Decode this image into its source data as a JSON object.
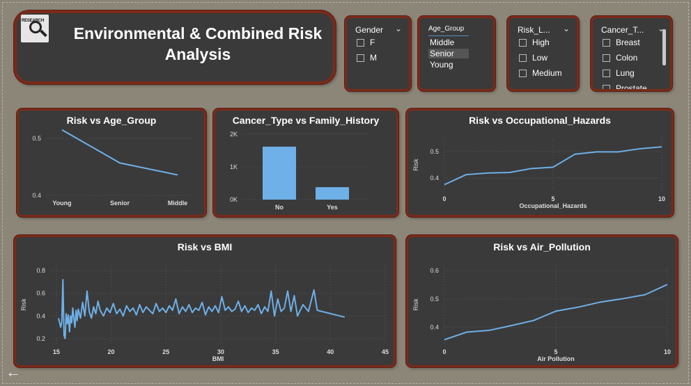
{
  "title": "Environmental & Combined Risk Analysis",
  "logo_text": "RESEARCH",
  "slicers": {
    "gender": {
      "label": "Gender",
      "options": [
        "F",
        "M"
      ]
    },
    "age_group": {
      "label": "Age_Group",
      "options": [
        "Middle",
        "Senior",
        "Young"
      ],
      "selected": "Senior"
    },
    "risk_level": {
      "label": "Risk_L...",
      "options": [
        "High",
        "Low",
        "Medium"
      ]
    },
    "cancer_type": {
      "label": "Cancer_T...",
      "options": [
        "Breast",
        "Colon",
        "Lung",
        "Prostate"
      ]
    }
  },
  "charts": {
    "risk_age": {
      "title": "Risk vs Age_Group",
      "chart_data": {
        "type": "line",
        "categories": [
          "Young",
          "Senior",
          "Middle"
        ],
        "values": [
          0.515,
          0.457,
          0.436
        ],
        "title": "Risk vs Age_Group",
        "ylim": [
          0.4,
          0.5
        ],
        "yticks": [
          "0.4",
          "0.5"
        ],
        "color": "#6fb0e8"
      }
    },
    "cancer_family": {
      "title": "Cancer_Type vs Family_History",
      "chart_data": {
        "type": "bar",
        "categories": [
          "No",
          "Yes"
        ],
        "values": [
          1620,
          380
        ],
        "title": "Cancer_Type vs Family_History",
        "ylim": [
          0,
          2000
        ],
        "yticks": [
          "0K",
          "1K",
          "2K"
        ],
        "color": "#6fb0e8"
      }
    },
    "risk_occ": {
      "title": "Risk vs Occupational_Hazards",
      "chart_data": {
        "type": "line",
        "x": [
          0,
          1,
          2,
          3,
          4,
          5,
          6,
          7,
          8,
          9,
          10
        ],
        "values": [
          0.375,
          0.413,
          0.419,
          0.421,
          0.436,
          0.441,
          0.49,
          0.499,
          0.499,
          0.511,
          0.518
        ],
        "title": "Risk vs Occupational_Hazards",
        "xlabel": "Occupational_Hazards",
        "ylabel": "Risk",
        "xticks": [
          "0",
          "5",
          "10"
        ],
        "yticks": [
          "0.4",
          "0.5"
        ],
        "xlim": [
          0,
          10
        ],
        "ylim": [
          0.35,
          0.55
        ],
        "color": "#6fb0e8"
      }
    },
    "risk_bmi": {
      "title": "Risk vs BMI",
      "chart_data": {
        "type": "line",
        "x": [
          15.2,
          15.4,
          15.5,
          15.6,
          15.7,
          15.8,
          15.9,
          16.0,
          16.1,
          16.2,
          16.3,
          16.4,
          16.5,
          16.6,
          16.7,
          16.8,
          16.9,
          17.0,
          17.2,
          17.4,
          17.6,
          17.8,
          18.0,
          18.2,
          18.4,
          18.6,
          18.8,
          19.0,
          19.3,
          19.6,
          19.9,
          20.2,
          20.5,
          20.8,
          21.1,
          21.4,
          21.7,
          22.0,
          22.3,
          22.6,
          22.9,
          23.2,
          23.5,
          23.8,
          24.1,
          24.4,
          24.7,
          25.0,
          25.3,
          25.6,
          25.9,
          26.2,
          26.5,
          26.8,
          27.1,
          27.4,
          27.7,
          28.0,
          28.3,
          28.6,
          28.9,
          29.2,
          29.5,
          29.8,
          30.1,
          30.4,
          30.7,
          31.0,
          31.3,
          31.6,
          31.9,
          32.2,
          32.5,
          32.8,
          33.1,
          33.4,
          33.7,
          34.0,
          34.3,
          34.6,
          34.9,
          35.2,
          35.5,
          35.8,
          36.1,
          36.4,
          36.7,
          37.0,
          37.5,
          38.0,
          38.5,
          38.8,
          39.2,
          41.3
        ],
        "values": [
          0.38,
          0.3,
          0.35,
          0.72,
          0.23,
          0.2,
          0.42,
          0.33,
          0.41,
          0.26,
          0.4,
          0.34,
          0.47,
          0.38,
          0.3,
          0.45,
          0.36,
          0.46,
          0.38,
          0.52,
          0.4,
          0.62,
          0.44,
          0.38,
          0.48,
          0.42,
          0.53,
          0.45,
          0.4,
          0.47,
          0.43,
          0.51,
          0.42,
          0.46,
          0.4,
          0.49,
          0.44,
          0.47,
          0.41,
          0.5,
          0.43,
          0.48,
          0.45,
          0.42,
          0.51,
          0.44,
          0.47,
          0.43,
          0.49,
          0.45,
          0.55,
          0.42,
          0.48,
          0.44,
          0.5,
          0.43,
          0.47,
          0.45,
          0.52,
          0.41,
          0.48,
          0.44,
          0.49,
          0.43,
          0.57,
          0.45,
          0.48,
          0.44,
          0.46,
          0.53,
          0.44,
          0.49,
          0.43,
          0.47,
          0.45,
          0.5,
          0.42,
          0.48,
          0.44,
          0.62,
          0.4,
          0.55,
          0.44,
          0.47,
          0.62,
          0.44,
          0.58,
          0.4,
          0.5,
          0.44,
          0.63,
          0.45,
          0.44,
          0.39
        ],
        "title": "Risk vs BMI",
        "xlabel": "BMI",
        "ylabel": "Risk",
        "xticks": [
          "15",
          "20",
          "25",
          "30",
          "35",
          "40",
          "45"
        ],
        "yticks": [
          "0.2",
          "0.4",
          "0.6",
          "0.8"
        ],
        "xlim": [
          14.5,
          45
        ],
        "ylim": [
          0.15,
          0.85
        ],
        "color": "#6fb0e8"
      }
    },
    "risk_air": {
      "title": "Risk vs Air_Pollution",
      "chart_data": {
        "type": "line",
        "x": [
          0,
          1,
          2,
          3,
          4,
          5,
          6,
          7,
          8,
          9,
          10
        ],
        "values": [
          0.356,
          0.383,
          0.389,
          0.406,
          0.424,
          0.457,
          0.471,
          0.489,
          0.501,
          0.515,
          0.551
        ],
        "title": "Risk vs Air_Pollution",
        "xlabel": "Air Pollution",
        "ylabel": "Risk",
        "xticks": [
          "0",
          "5",
          "10"
        ],
        "yticks": [
          "0.4",
          "0.5",
          "0.6"
        ],
        "xlim": [
          0,
          10
        ],
        "ylim": [
          0.34,
          0.62
        ],
        "color": "#6fb0e8"
      }
    }
  }
}
